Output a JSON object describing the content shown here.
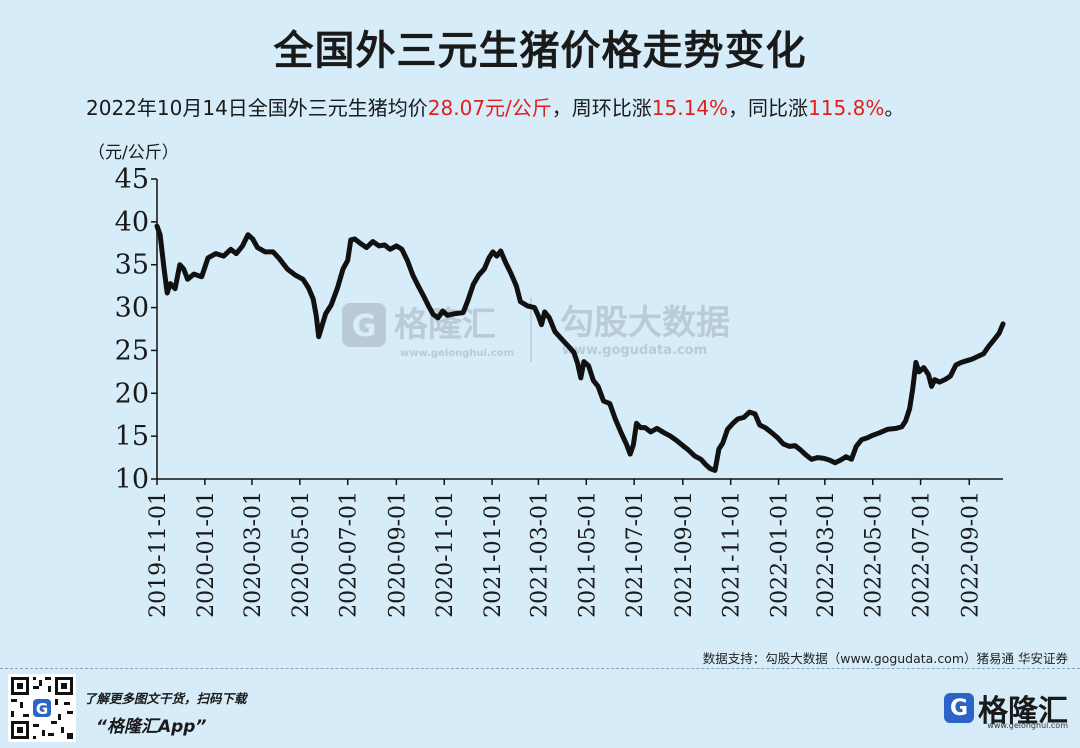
{
  "header": {
    "title": "全国外三元生猪价格走势变化",
    "subtitle_prefix": "2022年10月14日全国外三元生猪均价",
    "subtitle_price": "28.07元/公斤",
    "subtitle_mid1": "，周环比涨",
    "subtitle_wow": "15.14%",
    "subtitle_mid2": "，同比涨",
    "subtitle_yoy": "115.8%",
    "subtitle_end": "。"
  },
  "unit_label": "（元/公斤）",
  "watermark": {
    "brand_left": "格隆汇",
    "brand_left_url": "www.gelonghui.com",
    "brand_right": "勾股大数据",
    "brand_right_url": "www.gogudata.com"
  },
  "source": "数据支持：勾股大数据（www.gogudata.com）猪易通 华安证券",
  "footer": {
    "promo_line1": "了解更多图文干货，扫码下载",
    "promo_line2": "“格隆汇App”",
    "logo_mark": "G",
    "logo_text": "格隆汇",
    "logo_url": "www.gelonghui.com"
  },
  "colors": {
    "line": "#111111",
    "accent": "#e0201b",
    "background": "#d6ecf9"
  },
  "chart_data": {
    "type": "line",
    "title": "全国外三元生猪价格走势变化",
    "ylabel": "（元/公斤）",
    "ylim": [
      10,
      45
    ],
    "yticks": [
      10,
      15,
      20,
      25,
      30,
      35,
      40,
      45
    ],
    "xlim": [
      "2019-11-01",
      "2022-10-14"
    ],
    "xticks": [
      "2019-11-01",
      "2020-01-01",
      "2020-03-01",
      "2020-05-01",
      "2020-07-01",
      "2020-09-01",
      "2020-11-01",
      "2021-01-01",
      "2021-03-01",
      "2021-05-01",
      "2021-07-01",
      "2021-09-01",
      "2021-11-01",
      "2022-01-01",
      "2022-03-01",
      "2022-05-01",
      "2022-07-01",
      "2022-09-01"
    ],
    "grid": false,
    "series": [
      {
        "points": [
          [
            "2019-11-01",
            39.5
          ],
          [
            "2019-11-05",
            38.5
          ],
          [
            "2019-11-10",
            34.5
          ],
          [
            "2019-11-14",
            31.7
          ],
          [
            "2019-11-18",
            32.8
          ],
          [
            "2019-11-24",
            32.2
          ],
          [
            "2019-11-30",
            35.0
          ],
          [
            "2019-12-05",
            34.5
          ],
          [
            "2019-12-10",
            33.3
          ],
          [
            "2019-12-18",
            33.9
          ],
          [
            "2019-12-28",
            33.6
          ],
          [
            "2020-01-05",
            35.8
          ],
          [
            "2020-01-15",
            36.3
          ],
          [
            "2020-01-25",
            36.0
          ],
          [
            "2020-02-03",
            36.8
          ],
          [
            "2020-02-10",
            36.3
          ],
          [
            "2020-02-18",
            37.2
          ],
          [
            "2020-02-25",
            38.5
          ],
          [
            "2020-03-02",
            38.0
          ],
          [
            "2020-03-08",
            37.0
          ],
          [
            "2020-03-18",
            36.5
          ],
          [
            "2020-03-28",
            36.5
          ],
          [
            "2020-04-05",
            35.7
          ],
          [
            "2020-04-15",
            34.5
          ],
          [
            "2020-04-25",
            33.8
          ],
          [
            "2020-05-05",
            33.3
          ],
          [
            "2020-05-12",
            32.3
          ],
          [
            "2020-05-18",
            31.0
          ],
          [
            "2020-05-22",
            29.0
          ],
          [
            "2020-05-25",
            26.6
          ],
          [
            "2020-05-28",
            27.5
          ],
          [
            "2020-06-03",
            29.3
          ],
          [
            "2020-06-10",
            30.3
          ],
          [
            "2020-06-18",
            32.3
          ],
          [
            "2020-06-25",
            34.5
          ],
          [
            "2020-07-01",
            35.5
          ],
          [
            "2020-07-05",
            37.9
          ],
          [
            "2020-07-10",
            38.0
          ],
          [
            "2020-07-17",
            37.5
          ],
          [
            "2020-07-25",
            37.0
          ],
          [
            "2020-08-02",
            37.7
          ],
          [
            "2020-08-10",
            37.2
          ],
          [
            "2020-08-17",
            37.3
          ],
          [
            "2020-08-24",
            36.8
          ],
          [
            "2020-09-01",
            37.2
          ],
          [
            "2020-09-08",
            36.8
          ],
          [
            "2020-09-15",
            35.5
          ],
          [
            "2020-09-22",
            33.8
          ],
          [
            "2020-09-29",
            32.5
          ],
          [
            "2020-10-06",
            31.3
          ],
          [
            "2020-10-12",
            30.2
          ],
          [
            "2020-10-18",
            29.2
          ],
          [
            "2020-10-24",
            28.8
          ],
          [
            "2020-10-30",
            29.6
          ],
          [
            "2020-11-05",
            29.1
          ],
          [
            "2020-11-15",
            29.3
          ],
          [
            "2020-11-25",
            29.4
          ],
          [
            "2020-12-01",
            30.8
          ],
          [
            "2020-12-08",
            32.7
          ],
          [
            "2020-12-15",
            33.8
          ],
          [
            "2020-12-22",
            34.5
          ],
          [
            "2020-12-28",
            35.8
          ],
          [
            "2021-01-02",
            36.5
          ],
          [
            "2021-01-07",
            36.0
          ],
          [
            "2021-01-12",
            36.6
          ],
          [
            "2021-01-18",
            35.3
          ],
          [
            "2021-01-25",
            34.0
          ],
          [
            "2021-02-01",
            32.5
          ],
          [
            "2021-02-06",
            30.7
          ],
          [
            "2021-02-15",
            30.2
          ],
          [
            "2021-02-24",
            30.0
          ],
          [
            "2021-03-01",
            29.0
          ],
          [
            "2021-03-05",
            28.0
          ],
          [
            "2021-03-09",
            29.5
          ],
          [
            "2021-03-15",
            28.8
          ],
          [
            "2021-03-22",
            27.2
          ],
          [
            "2021-03-31",
            26.3
          ],
          [
            "2021-04-08",
            25.5
          ],
          [
            "2021-04-15",
            24.8
          ],
          [
            "2021-04-20",
            23.5
          ],
          [
            "2021-04-24",
            21.8
          ],
          [
            "2021-04-28",
            23.7
          ],
          [
            "2021-05-04",
            23.2
          ],
          [
            "2021-05-10",
            21.5
          ],
          [
            "2021-05-16",
            20.8
          ],
          [
            "2021-05-23",
            19.1
          ],
          [
            "2021-05-31",
            18.8
          ],
          [
            "2021-06-07",
            17.0
          ],
          [
            "2021-06-14",
            15.5
          ],
          [
            "2021-06-21",
            14.1
          ],
          [
            "2021-06-26",
            12.9
          ],
          [
            "2021-06-30",
            14.0
          ],
          [
            "2021-07-04",
            16.5
          ],
          [
            "2021-07-09",
            16.0
          ],
          [
            "2021-07-15",
            16.0
          ],
          [
            "2021-07-22",
            15.5
          ],
          [
            "2021-07-30",
            15.9
          ],
          [
            "2021-08-08",
            15.4
          ],
          [
            "2021-08-16",
            15.0
          ],
          [
            "2021-08-24",
            14.5
          ],
          [
            "2021-09-01",
            13.9
          ],
          [
            "2021-09-08",
            13.4
          ],
          [
            "2021-09-16",
            12.7
          ],
          [
            "2021-09-24",
            12.3
          ],
          [
            "2021-10-01",
            11.6
          ],
          [
            "2021-10-06",
            11.2
          ],
          [
            "2021-10-12",
            11.0
          ],
          [
            "2021-10-17",
            13.5
          ],
          [
            "2021-10-22",
            14.2
          ],
          [
            "2021-10-28",
            15.8
          ],
          [
            "2021-11-04",
            16.5
          ],
          [
            "2021-11-10",
            17.0
          ],
          [
            "2021-11-18",
            17.2
          ],
          [
            "2021-11-25",
            17.8
          ],
          [
            "2021-12-02",
            17.6
          ],
          [
            "2021-12-08",
            16.3
          ],
          [
            "2021-12-15",
            16.0
          ],
          [
            "2021-12-22",
            15.5
          ],
          [
            "2021-12-31",
            14.8
          ],
          [
            "2022-01-07",
            14.1
          ],
          [
            "2022-01-15",
            13.8
          ],
          [
            "2022-01-22",
            13.9
          ],
          [
            "2022-01-29",
            13.4
          ],
          [
            "2022-02-05",
            12.8
          ],
          [
            "2022-02-12",
            12.3
          ],
          [
            "2022-02-20",
            12.5
          ],
          [
            "2022-02-28",
            12.4
          ],
          [
            "2022-03-07",
            12.2
          ],
          [
            "2022-03-14",
            11.9
          ],
          [
            "2022-03-21",
            12.2
          ],
          [
            "2022-03-28",
            12.6
          ],
          [
            "2022-04-04",
            12.3
          ],
          [
            "2022-04-10",
            13.8
          ],
          [
            "2022-04-17",
            14.6
          ],
          [
            "2022-04-24",
            14.8
          ],
          [
            "2022-05-01",
            15.1
          ],
          [
            "2022-05-10",
            15.4
          ],
          [
            "2022-05-20",
            15.8
          ],
          [
            "2022-05-31",
            15.9
          ],
          [
            "2022-06-07",
            16.1
          ],
          [
            "2022-06-12",
            16.8
          ],
          [
            "2022-06-17",
            18.2
          ],
          [
            "2022-06-21",
            20.5
          ],
          [
            "2022-06-25",
            23.6
          ],
          [
            "2022-06-29",
            22.5
          ],
          [
            "2022-07-05",
            23.0
          ],
          [
            "2022-07-11",
            22.2
          ],
          [
            "2022-07-15",
            20.8
          ],
          [
            "2022-07-19",
            21.6
          ],
          [
            "2022-07-25",
            21.3
          ],
          [
            "2022-08-01",
            21.6
          ],
          [
            "2022-08-08",
            22.0
          ],
          [
            "2022-08-15",
            23.3
          ],
          [
            "2022-08-22",
            23.6
          ],
          [
            "2022-08-29",
            23.8
          ],
          [
            "2022-09-05",
            24.0
          ],
          [
            "2022-09-12",
            24.3
          ],
          [
            "2022-09-19",
            24.6
          ],
          [
            "2022-09-26",
            25.5
          ],
          [
            "2022-10-03",
            26.3
          ],
          [
            "2022-10-09",
            27.0
          ],
          [
            "2022-10-14",
            28.1
          ]
        ]
      }
    ]
  }
}
